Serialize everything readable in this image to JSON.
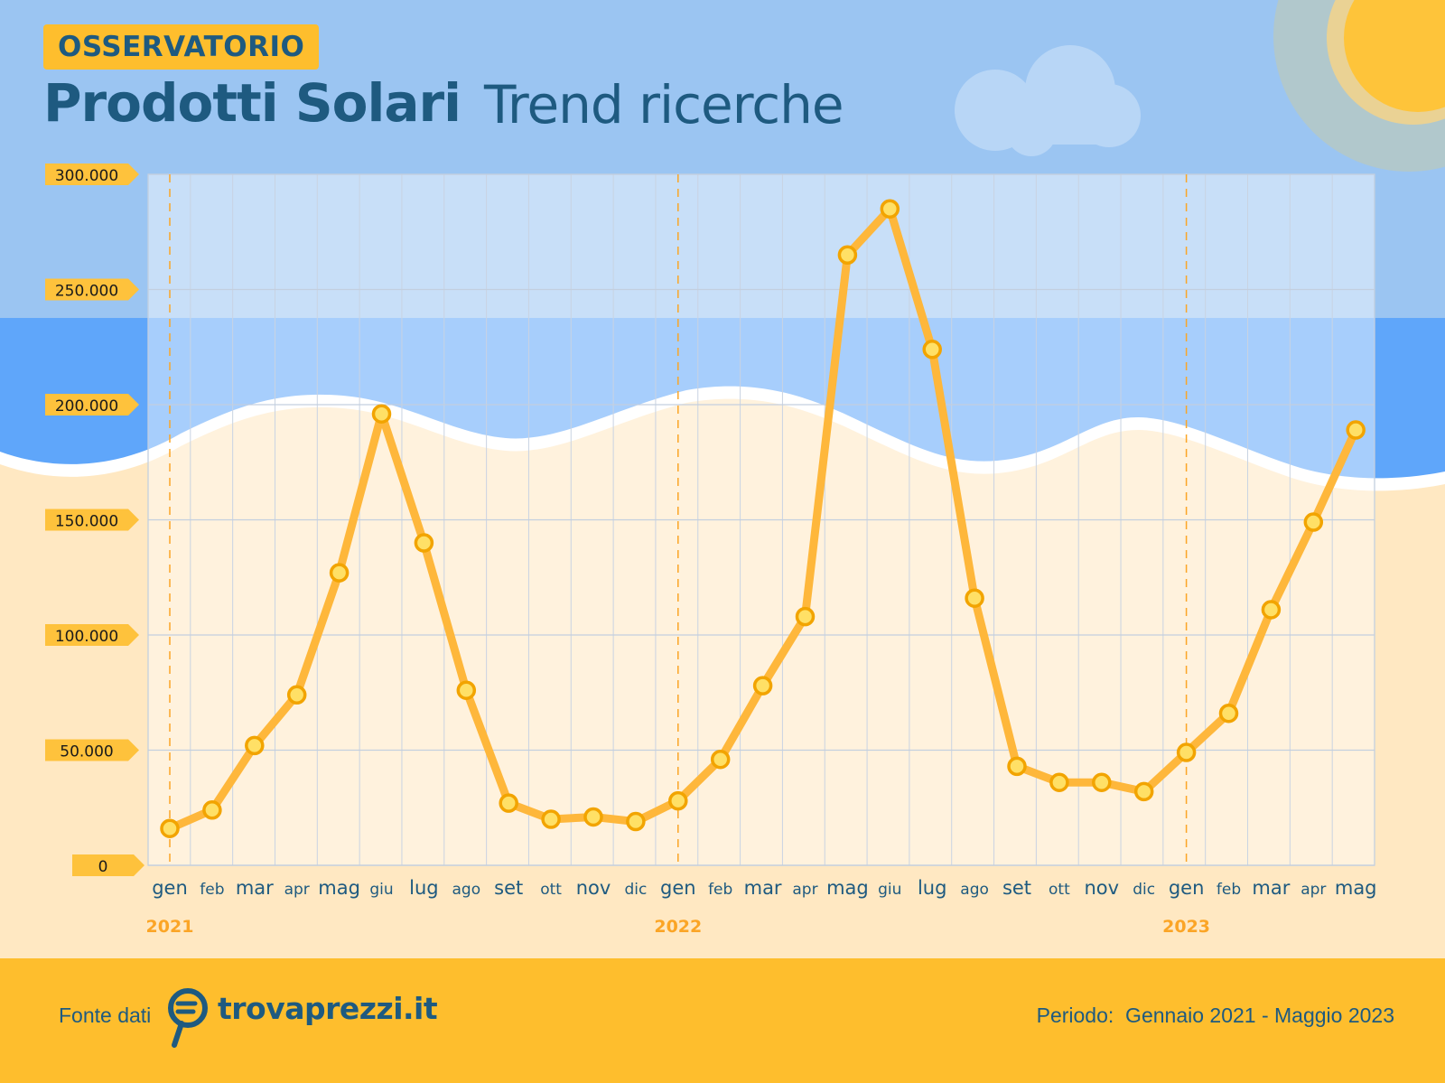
{
  "header": {
    "badge": "OSSERVATORIO",
    "title": "Prodotti Solari",
    "subtitle": "Trend ricerche"
  },
  "footer": {
    "source_label": "Fonte dati",
    "brand": "trovaprezzi.it",
    "period": "Periodo:  Gennaio 2021 - Maggio 2023"
  },
  "colors": {
    "line": "#FEB73B",
    "marker_fill": "#FFE066",
    "marker_stroke": "#F2A400",
    "label_tag": "#FEC23C",
    "text_dark": "#1E5A80",
    "year_label": "#FBA526",
    "sky": "#9BC5F2",
    "sea": "#5FA6FA",
    "sand": "#FFE8C2",
    "footer": "#FEBE2D"
  },
  "chart_data": {
    "type": "line",
    "categories": [
      "gen",
      "feb",
      "mar",
      "apr",
      "mag",
      "giu",
      "lug",
      "ago",
      "set",
      "ott",
      "nov",
      "dic",
      "gen",
      "feb",
      "mar",
      "apr",
      "mag",
      "giu",
      "lug",
      "ago",
      "set",
      "ott",
      "nov",
      "dic",
      "gen",
      "feb",
      "mar",
      "apr",
      "mag"
    ],
    "years": [
      {
        "label": "2021",
        "index": 0
      },
      {
        "label": "2022",
        "index": 12
      },
      {
        "label": "2023",
        "index": 24
      }
    ],
    "series": [
      {
        "values": [
          16000,
          24000,
          52000,
          74000,
          127000,
          196000,
          140000,
          76000,
          27000,
          20000,
          21000,
          19000,
          28000,
          46000,
          78000,
          108000,
          265000,
          285000,
          224000,
          116000,
          43000,
          36000,
          36000,
          32000,
          49000,
          66000,
          111000,
          149000,
          189000
        ]
      }
    ],
    "yticks": [
      0,
      50000,
      100000,
      150000,
      200000,
      250000,
      300000
    ],
    "ytick_labels": [
      "0",
      "50.000",
      "100.000",
      "150.000",
      "200.000",
      "250.000",
      "300.000"
    ],
    "ylim": [
      0,
      300000
    ],
    "grid": true,
    "title": "",
    "xlabel": "",
    "ylabel": ""
  }
}
